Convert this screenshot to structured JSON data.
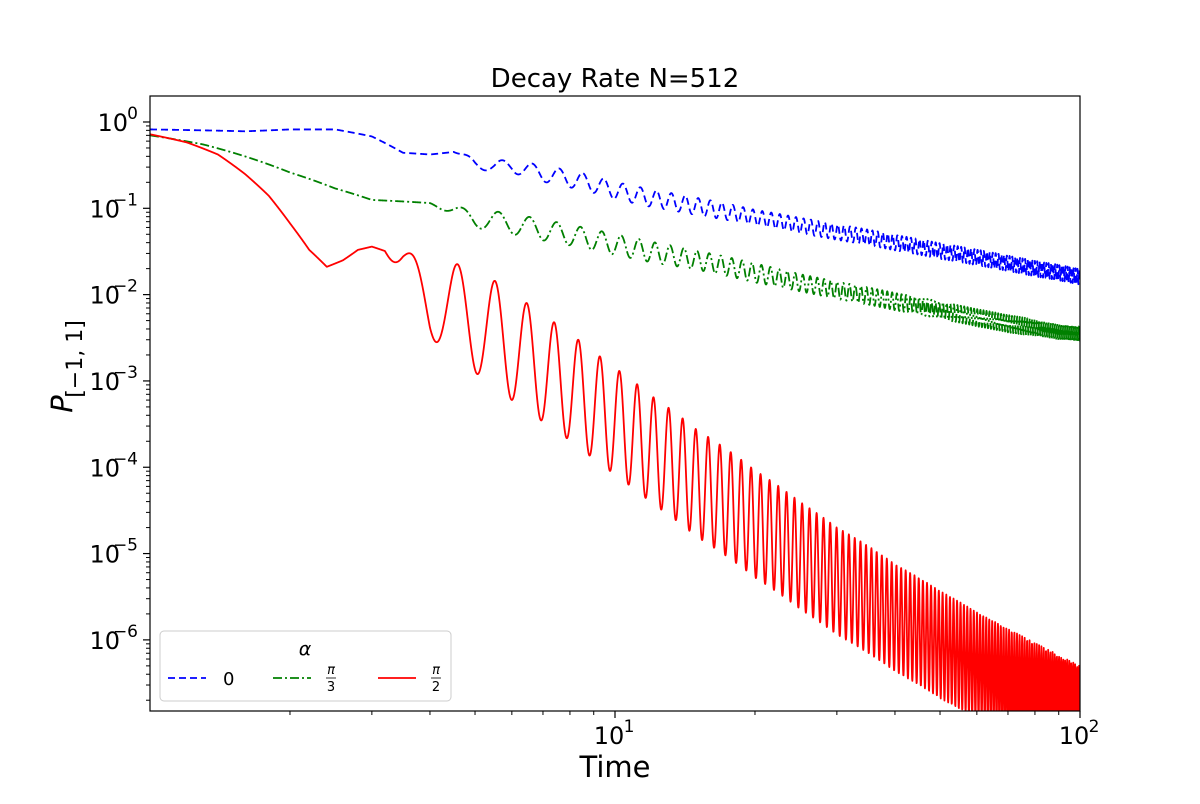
{
  "chart_data": {
    "type": "line",
    "title": "Decay Rate N=512",
    "xlabel": "Time",
    "ylabel": "P[−1, 1]",
    "xscale": "log",
    "yscale": "log",
    "xlim": [
      1,
      100
    ],
    "ylim": [
      1.5e-07,
      2.0
    ],
    "x_ticks": [
      {
        "value": 10,
        "label_base": "10",
        "label_exp": "1"
      },
      {
        "value": 100,
        "label_base": "10",
        "label_exp": "2"
      }
    ],
    "y_ticks": [
      {
        "value": 1,
        "label_base": "10",
        "label_exp": "0"
      },
      {
        "value": 0.1,
        "label_base": "10",
        "label_exp": "−1"
      },
      {
        "value": 0.01,
        "label_base": "10",
        "label_exp": "−2"
      },
      {
        "value": 0.001,
        "label_base": "10",
        "label_exp": "−3"
      },
      {
        "value": 0.0001,
        "label_base": "10",
        "label_exp": "−4"
      },
      {
        "value": 1e-05,
        "label_base": "10",
        "label_exp": "−5"
      },
      {
        "value": 1e-06,
        "label_base": "10",
        "label_exp": "−6"
      }
    ],
    "grid": false,
    "legend": {
      "title": "α",
      "placement": "lower-left",
      "columns": 3
    },
    "series": [
      {
        "name": "0",
        "color": "#0000ff",
        "dash": "dashed",
        "x": [
          1.0,
          1.3,
          1.6,
          2.0,
          2.5,
          3.0,
          3.5,
          4.0,
          4.5,
          5.0,
          5.5,
          6.0,
          7.0,
          8.0,
          9.0,
          10.0,
          12.0,
          15.0,
          20.0,
          25.0,
          30.0,
          40.0,
          50.0,
          60.0,
          70.0,
          80.0,
          90.0,
          100.0
        ],
        "values": [
          0.82,
          0.8,
          0.78,
          0.82,
          0.82,
          0.68,
          0.44,
          0.42,
          0.45,
          0.34,
          0.3,
          0.31,
          0.25,
          0.22,
          0.19,
          0.16,
          0.13,
          0.105,
          0.078,
          0.063,
          0.053,
          0.04,
          0.032,
          0.027,
          0.023,
          0.02,
          0.018,
          0.016
        ],
        "amplitude": [
          0,
          0,
          0,
          0,
          0,
          0,
          0,
          0,
          0,
          0.06,
          0.07,
          0.08,
          0.09,
          0.1,
          0.1,
          0.1,
          0.1,
          0.1,
          0.09,
          0.09,
          0.09,
          0.09,
          0.09,
          0.09,
          0.09,
          0.09,
          0.09,
          0.09
        ],
        "osc_period_time": 0.94
      },
      {
        "name": "π/3",
        "label_num": "π",
        "label_den": "3",
        "color": "#008000",
        "dash": "dashdot",
        "x": [
          1.0,
          1.3,
          1.6,
          2.0,
          2.5,
          3.0,
          3.5,
          4.0,
          4.5,
          5.0,
          5.5,
          6.0,
          7.0,
          8.0,
          9.0,
          10.0,
          12.0,
          15.0,
          20.0,
          25.0,
          30.0,
          40.0,
          50.0,
          60.0,
          70.0,
          80.0,
          90.0,
          100.0
        ],
        "values": [
          0.7,
          0.55,
          0.4,
          0.26,
          0.17,
          0.125,
          0.12,
          0.115,
          0.092,
          0.076,
          0.07,
          0.066,
          0.056,
          0.049,
          0.043,
          0.038,
          0.031,
          0.025,
          0.0178,
          0.0137,
          0.0112,
          0.0083,
          0.0066,
          0.0054,
          0.0046,
          0.0041,
          0.0037,
          0.0035
        ],
        "amplitude": [
          0,
          0,
          0,
          0,
          0,
          0,
          0,
          0,
          0.06,
          0.1,
          0.12,
          0.12,
          0.12,
          0.12,
          0.12,
          0.12,
          0.12,
          0.11,
          0.11,
          0.1,
          0.1,
          0.1,
          0.1,
          0.1,
          0.1,
          0.1,
          0.1,
          0.1
        ],
        "osc_period_time": 0.94
      },
      {
        "name": "π/2",
        "label_num": "π",
        "label_den": "2",
        "color": "#ff0000",
        "dash": "solid",
        "x": [
          1.0,
          1.2,
          1.4,
          1.6,
          1.8,
          2.0,
          2.2,
          2.4,
          2.6,
          2.8,
          3.0,
          3.2,
          3.5,
          4.0,
          4.5,
          5.0,
          5.5,
          6.0,
          7.0,
          8.0,
          9.0,
          10.0,
          12.0,
          15.0,
          20.0,
          25.0,
          30.0,
          40.0,
          50.0,
          60.0,
          70.0,
          80.0,
          90.0,
          100.0
        ],
        "values": [
          0.72,
          0.58,
          0.42,
          0.25,
          0.14,
          0.067,
          0.033,
          0.021,
          0.025,
          0.033,
          0.036,
          0.032,
          0.021,
          0.0085,
          0.0065,
          0.005,
          0.0035,
          0.0025,
          0.0014,
          0.00085,
          0.00052,
          0.00034,
          0.00016,
          6.5e-05,
          2.2e-05,
          9.5e-06,
          4.8e-06,
          1.8e-06,
          8.8e-07,
          5e-07,
          3.2e-07,
          2.2e-07,
          1.6e-07,
          1.2e-07
        ],
        "amplitude": [
          0,
          0,
          0,
          0,
          0,
          0,
          0,
          0,
          0,
          0,
          0,
          0,
          0.2,
          0.42,
          0.55,
          0.6,
          0.62,
          0.62,
          0.62,
          0.62,
          0.62,
          0.62,
          0.62,
          0.62,
          0.62,
          0.62,
          0.62,
          0.62,
          0.62,
          0.62,
          0.62,
          0.62,
          0.62,
          0.62
        ],
        "osc_period_time": 0.94
      }
    ]
  }
}
